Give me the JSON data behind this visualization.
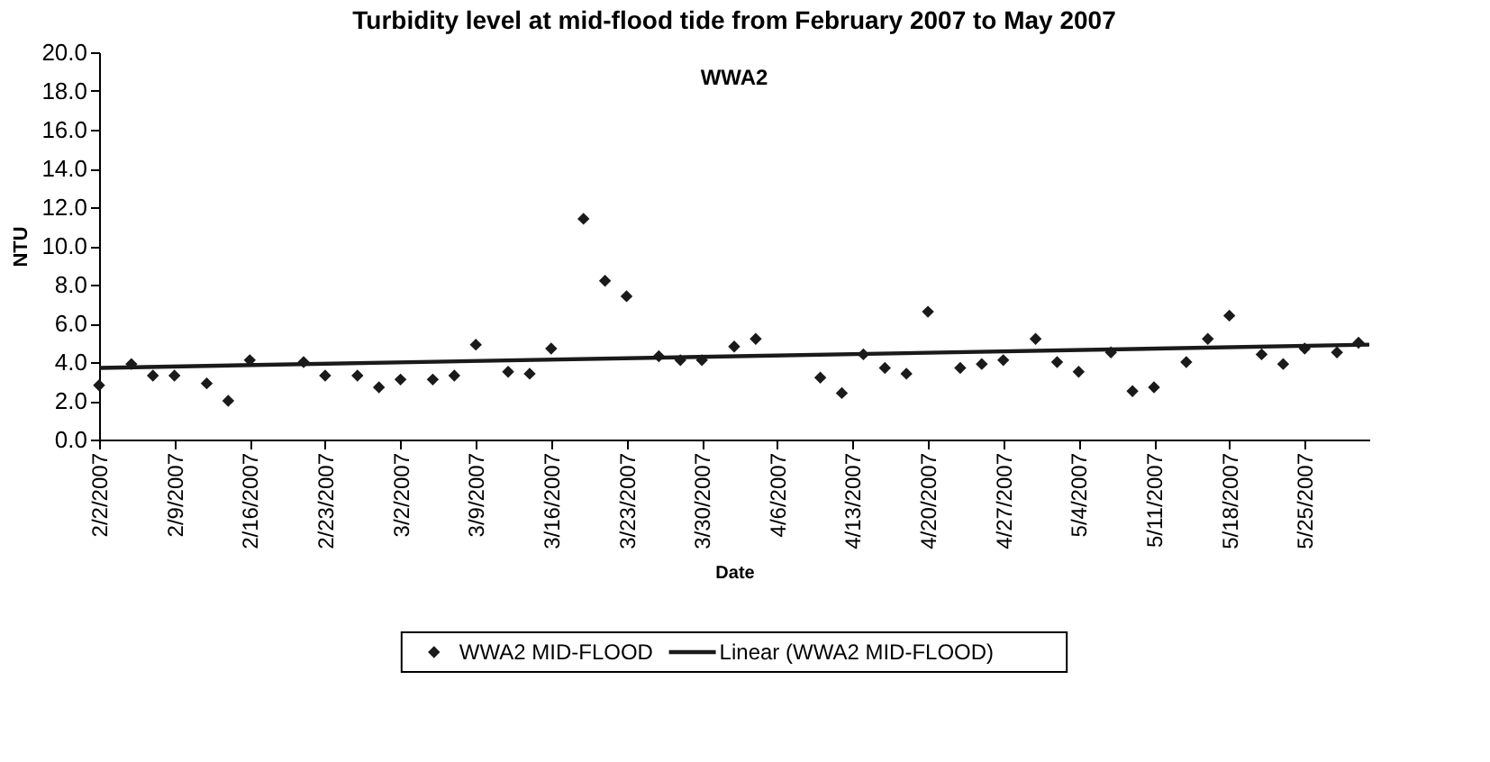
{
  "chart_data": {
    "type": "scatter",
    "title": "Turbidity level at mid-flood tide from February 2007 to May 2007",
    "annotations": [
      "WWA2"
    ],
    "xlabel": "Date",
    "ylabel": "NTU",
    "xlim": [
      "2007-02-02",
      "2007-05-31"
    ],
    "xticks": [
      {
        "value": "2007-02-02",
        "label": "2/2/2007"
      },
      {
        "value": "2007-02-09",
        "label": "2/9/2007"
      },
      {
        "value": "2007-02-16",
        "label": "2/16/2007"
      },
      {
        "value": "2007-02-23",
        "label": "2/23/2007"
      },
      {
        "value": "2007-03-02",
        "label": "3/2/2007"
      },
      {
        "value": "2007-03-09",
        "label": "3/9/2007"
      },
      {
        "value": "2007-03-16",
        "label": "3/16/2007"
      },
      {
        "value": "2007-03-23",
        "label": "3/23/2007"
      },
      {
        "value": "2007-03-30",
        "label": "3/30/2007"
      },
      {
        "value": "2007-04-06",
        "label": "4/6/2007"
      },
      {
        "value": "2007-04-13",
        "label": "4/13/2007"
      },
      {
        "value": "2007-04-20",
        "label": "4/20/2007"
      },
      {
        "value": "2007-04-27",
        "label": "4/27/2007"
      },
      {
        "value": "2007-05-04",
        "label": "5/4/2007"
      },
      {
        "value": "2007-05-11",
        "label": "5/11/2007"
      },
      {
        "value": "2007-05-18",
        "label": "5/18/2007"
      },
      {
        "value": "2007-05-25",
        "label": "5/25/2007"
      }
    ],
    "ylim": [
      0,
      20
    ],
    "yticks": [
      {
        "value": 0,
        "label": "0.0"
      },
      {
        "value": 2,
        "label": "2.0"
      },
      {
        "value": 4,
        "label": "4.0"
      },
      {
        "value": 6,
        "label": "6.0"
      },
      {
        "value": 8,
        "label": "8.0"
      },
      {
        "value": 10,
        "label": "10.0"
      },
      {
        "value": 12,
        "label": "12.0"
      },
      {
        "value": 14,
        "label": "14.0"
      },
      {
        "value": 16,
        "label": "16.0"
      },
      {
        "value": 18,
        "label": "18.0"
      },
      {
        "value": 20,
        "label": "20.0"
      }
    ],
    "grid": false,
    "legend": "bottom",
    "marker": "diamond",
    "series": [
      {
        "name": "WWA2 MID-FLOOD",
        "color": "#1a1a1a",
        "x": [
          "2007-02-02",
          "2007-02-05",
          "2007-02-07",
          "2007-02-09",
          "2007-02-12",
          "2007-02-14",
          "2007-02-16",
          "2007-02-21",
          "2007-02-23",
          "2007-02-26",
          "2007-02-28",
          "2007-03-02",
          "2007-03-05",
          "2007-03-07",
          "2007-03-09",
          "2007-03-12",
          "2007-03-14",
          "2007-03-16",
          "2007-03-19",
          "2007-03-21",
          "2007-03-23",
          "2007-03-26",
          "2007-03-28",
          "2007-03-30",
          "2007-04-02",
          "2007-04-04",
          "2007-04-10",
          "2007-04-12",
          "2007-04-14",
          "2007-04-16",
          "2007-04-18",
          "2007-04-20",
          "2007-04-23",
          "2007-04-25",
          "2007-04-27",
          "2007-04-30",
          "2007-05-02",
          "2007-05-04",
          "2007-05-07",
          "2007-05-09",
          "2007-05-11",
          "2007-05-14",
          "2007-05-16",
          "2007-05-18",
          "2007-05-21",
          "2007-05-23",
          "2007-05-25",
          "2007-05-28",
          "2007-05-30"
        ],
        "values": [
          2.8,
          3.9,
          3.3,
          3.3,
          2.9,
          2.0,
          4.1,
          4.0,
          3.3,
          3.3,
          2.7,
          3.1,
          3.1,
          3.3,
          4.9,
          3.5,
          3.4,
          4.7,
          11.4,
          8.2,
          7.4,
          4.3,
          4.1,
          4.1,
          4.8,
          5.2,
          3.2,
          2.4,
          4.4,
          3.7,
          3.4,
          6.6,
          3.7,
          3.9,
          4.1,
          5.2,
          4.0,
          3.5,
          4.5,
          2.5,
          2.7,
          4.0,
          5.2,
          6.4,
          4.4,
          3.9,
          4.7,
          4.5,
          5.0
        ]
      },
      {
        "name": "Linear (WWA2 MID-FLOOD)",
        "color": "#1a1a1a",
        "type": "line",
        "line_style": "solid",
        "marker": "none",
        "x": [
          "2007-02-02",
          "2007-05-31"
        ],
        "values": [
          3.7,
          4.9
        ]
      }
    ]
  }
}
